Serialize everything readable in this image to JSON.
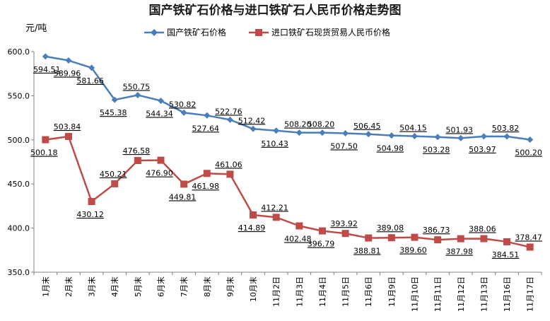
{
  "chart_data": {
    "type": "line",
    "title": "国产铁矿石价格与进口铁矿石人民币价格走势图",
    "ylabel_unit": "元/吨",
    "ylim": [
      350,
      600
    ],
    "yticks": [
      "350.0",
      "400.0",
      "450.0",
      "500.0",
      "550.0",
      "600.0"
    ],
    "grid": false,
    "legend_position": "top",
    "categories": [
      "1月末",
      "2月末",
      "3月末",
      "4月末",
      "5月末",
      "6月末",
      "7月末",
      "8月末",
      "9月末",
      "10月末",
      "11月2日",
      "11月3日",
      "11月4日",
      "11月5日",
      "11月6日",
      "11月9日",
      "11月10日",
      "11月11日",
      "11月12日",
      "11月13日",
      "11月16日",
      "11月17日"
    ],
    "series": [
      {
        "name": "国产铁矿石价格",
        "color": "#4a7ebb",
        "marker": "diamond",
        "values": [
          594.51,
          589.96,
          581.66,
          545.38,
          550.75,
          544.34,
          530.82,
          527.64,
          522.76,
          512.42,
          510.43,
          508.2,
          508.2,
          507.5,
          506.45,
          504.98,
          504.15,
          503.28,
          501.93,
          503.97,
          503.82,
          500.2
        ],
        "labels": [
          "594.51",
          "589.96",
          "581.66",
          "545.38",
          "550.75",
          "544.34",
          "530.82",
          "527.64",
          "522.76",
          "512.42",
          "510.43",
          "508.20",
          "508.20",
          "507.50",
          "506.45",
          "504.98",
          "504.15",
          "503.28",
          "501.93",
          "503.97",
          "503.82",
          "500.20"
        ]
      },
      {
        "name": "进口铁矿石现货贸易人民币价格",
        "color": "#be4b48",
        "marker": "square",
        "values": [
          500.18,
          503.84,
          430.12,
          450.21,
          476.58,
          476.9,
          449.81,
          461.98,
          461.06,
          414.89,
          412.21,
          402.48,
          396.79,
          393.92,
          388.81,
          389.08,
          389.6,
          386.73,
          387.98,
          388.06,
          384.51,
          378.47
        ],
        "labels": [
          "500.18",
          "503.84",
          "430.12",
          "450.21",
          "476.58",
          "476.90",
          "449.81",
          "461.98",
          "461.06",
          "414.89",
          "412.21",
          "402.48",
          "396.79",
          "393.92",
          "388.81",
          "389.08",
          "389.60",
          "386.73",
          "387.98",
          "388.06",
          "384.51",
          "378.47"
        ]
      }
    ]
  }
}
